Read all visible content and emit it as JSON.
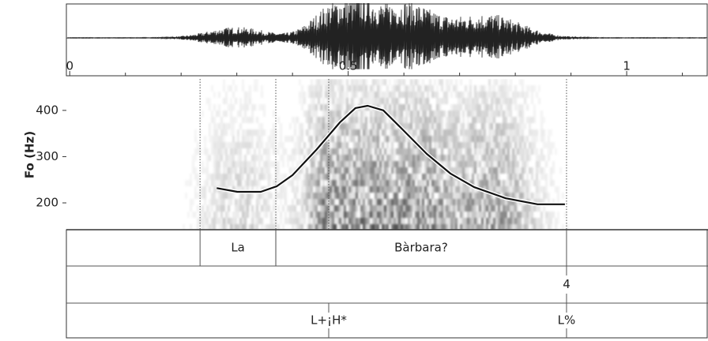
{
  "chart_data": {
    "type": "line",
    "ylabel": "Fo (Hz)",
    "xlim": [
      -0.006,
      1.146
    ],
    "xticks": [
      0,
      0.5,
      1
    ],
    "xminorticks": [
      0.1,
      0.2,
      0.3,
      0.4,
      0.6,
      0.7,
      0.8,
      0.9,
      1.1
    ],
    "ylim": [
      142,
      468
    ],
    "yticks": [
      200,
      300,
      400
    ],
    "series": [
      {
        "color": "#111111",
        "x": [
          0.264,
          0.301,
          0.343,
          0.372,
          0.4,
          0.443,
          0.485,
          0.513,
          0.535,
          0.563,
          0.599,
          0.641,
          0.684,
          0.726,
          0.783,
          0.84,
          0.889
        ],
        "values": [
          232,
          224,
          224,
          236,
          260,
          315,
          374,
          405,
          410,
          400,
          357,
          306,
          263,
          234,
          210,
          197,
          197
        ]
      }
    ],
    "boundaries": [
      0.234,
      0.37,
      0.465,
      0.892
    ],
    "tiers": [
      {
        "intervals": [
          {
            "start": 0.234,
            "end": 0.37,
            "label": "La"
          },
          {
            "start": 0.37,
            "end": 0.892,
            "label": "Bàrbara?"
          }
        ]
      },
      {
        "points": [
          {
            "time": 0.892,
            "label": "4"
          }
        ]
      },
      {
        "points": [
          {
            "time": 0.465,
            "label": "L+¡H*"
          },
          {
            "time": 0.892,
            "label": "L%"
          }
        ]
      }
    ]
  }
}
